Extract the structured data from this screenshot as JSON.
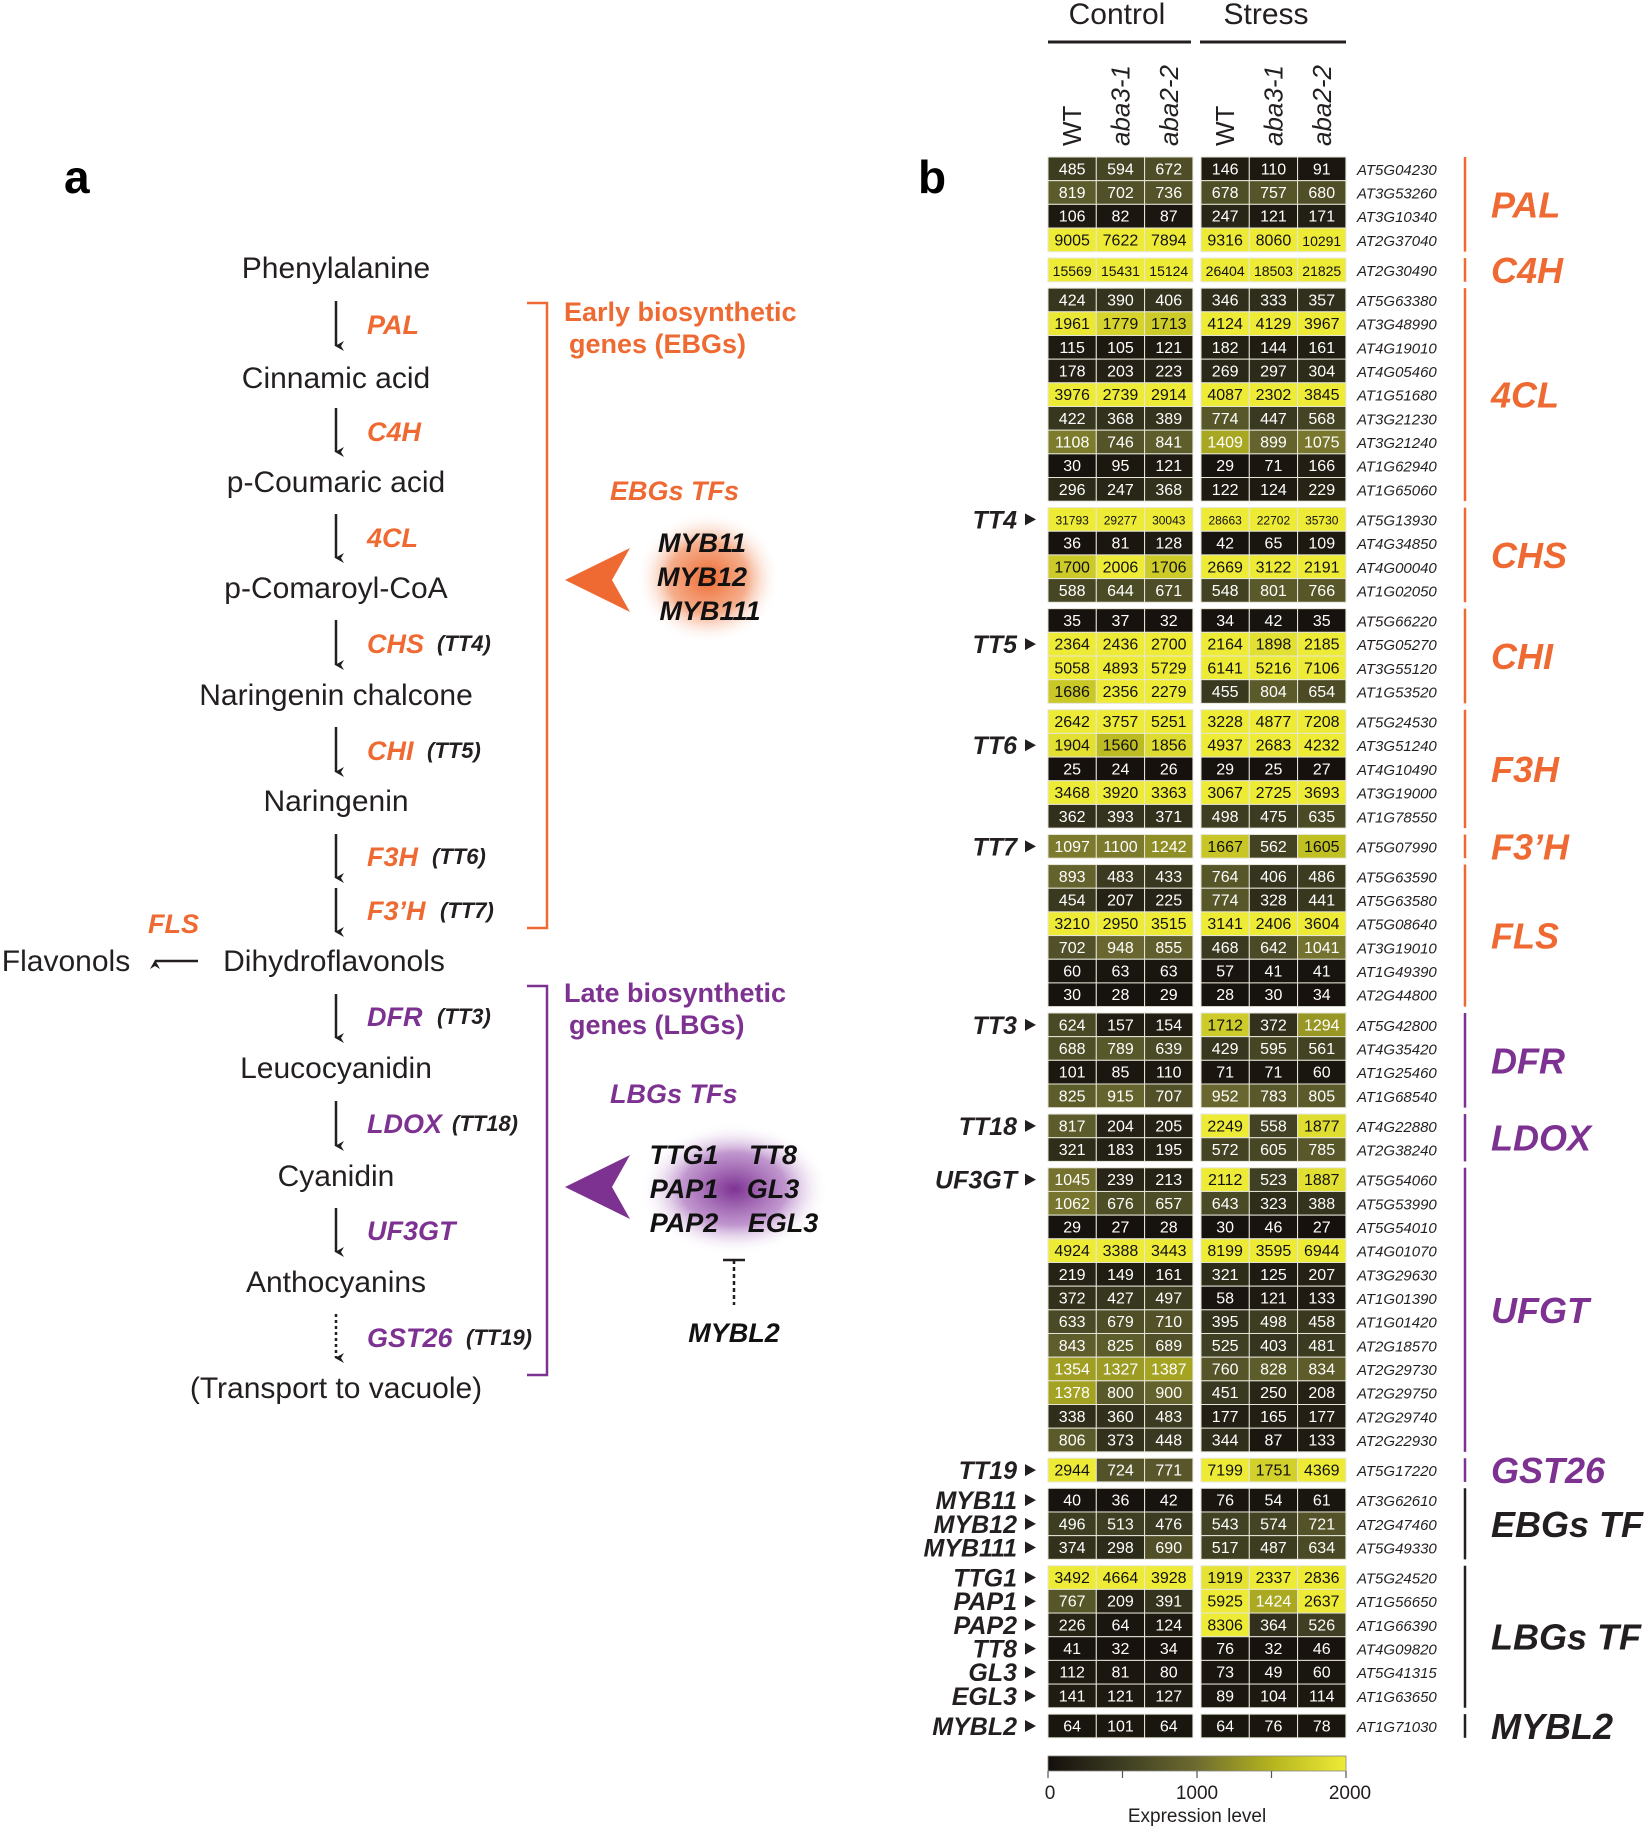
{
  "panel_a": {
    "label": "a",
    "compounds": [
      "Phenylalanine",
      "Cinnamic acid",
      "p-Coumaric acid",
      "p-Comaroyl-CoA",
      "Naringenin chalcone",
      "Naringenin",
      "Dihydroflavonols",
      "Leucocyanidin",
      "Cyanidin",
      "Anthocyanins",
      "(Transport to vacuole)"
    ],
    "side_product": "Flavonols",
    "side_enzyme": "FLS",
    "enzymes": [
      {
        "name": "PAL",
        "tt": ""
      },
      {
        "name": "C4H",
        "tt": ""
      },
      {
        "name": "4CL",
        "tt": ""
      },
      {
        "name": "CHS",
        "tt": "(TT4)"
      },
      {
        "name": "CHI",
        "tt": "(TT5)"
      },
      {
        "name": "F3H",
        "tt": "(TT6)"
      },
      {
        "name": "F3’H",
        "tt": "(TT7)"
      },
      {
        "name": "DFR",
        "tt": "(TT3)"
      },
      {
        "name": "LDOX",
        "tt": "(TT18)"
      },
      {
        "name": "UF3GT",
        "tt": ""
      },
      {
        "name": "GST26",
        "tt": "(TT19)"
      }
    ],
    "ebg_bracket": [
      "Early biosynthetic",
      "genes (EBGs)"
    ],
    "lbg_bracket": [
      "Late biosynthetic",
      "genes (LBGs)"
    ],
    "ebg_tfs_title": "EBGs TFs",
    "ebg_tfs": [
      "MYB11",
      "MYB12",
      "MYB111"
    ],
    "lbg_tfs_title": "LBGs TFs",
    "lbg_tfs": [
      "TTG1",
      "TT8",
      "PAP1",
      "GL3",
      "PAP2",
      "EGL3"
    ],
    "repressor": "MYBL2",
    "colors": {
      "early": "#ee6a32",
      "late": "#7d3292"
    }
  },
  "chart_data": {
    "type": "heatmap",
    "panel_label": "b",
    "conditions": [
      "Control",
      "Stress"
    ],
    "columns": [
      "WT",
      "aba3-1",
      "aba2-2",
      "WT",
      "aba3-1",
      "aba2-2"
    ],
    "colorbar": {
      "label": "Expression level",
      "range": [
        0,
        2000
      ],
      "ticks": [
        "0",
        "1000",
        "2000"
      ],
      "colors": [
        "#140f0c",
        "#3d3d22",
        "#6e6c30",
        "#b5b41e",
        "#eeeb37"
      ]
    },
    "groups": [
      {
        "name": "PAL",
        "color": "#ee6a32",
        "rows": [
          {
            "id": "AT5G04230",
            "v": [
              485,
              594,
              672,
              146,
              110,
              91
            ]
          },
          {
            "id": "AT3G53260",
            "v": [
              819,
              702,
              736,
              678,
              757,
              680
            ]
          },
          {
            "id": "AT3G10340",
            "v": [
              106,
              82,
              87,
              247,
              121,
              171
            ]
          },
          {
            "id": "AT2G37040",
            "v": [
              9005,
              7622,
              7894,
              9316,
              8060,
              10291
            ]
          }
        ]
      },
      {
        "name": "C4H",
        "color": "#ee6a32",
        "rows": [
          {
            "id": "AT2G30490",
            "v": [
              15569,
              15431,
              15124,
              26404,
              18503,
              21825
            ]
          }
        ]
      },
      {
        "name": "4CL",
        "color": "#ee6a32",
        "rows": [
          {
            "id": "AT5G63380",
            "v": [
              424,
              390,
              406,
              346,
              333,
              357
            ]
          },
          {
            "id": "AT3G48990",
            "v": [
              1961,
              1779,
              1713,
              4124,
              4129,
              3967
            ]
          },
          {
            "id": "AT4G19010",
            "v": [
              115,
              105,
              121,
              182,
              144,
              161
            ]
          },
          {
            "id": "AT4G05460",
            "v": [
              178,
              203,
              223,
              269,
              297,
              304
            ]
          },
          {
            "id": "AT1G51680",
            "v": [
              3976,
              2739,
              2914,
              4087,
              2302,
              3845
            ]
          },
          {
            "id": "AT3G21230",
            "v": [
              422,
              368,
              389,
              774,
              447,
              568
            ]
          },
          {
            "id": "AT3G21240",
            "v": [
              1108,
              746,
              841,
              1409,
              899,
              1075
            ]
          },
          {
            "id": "AT1G62940",
            "v": [
              30,
              95,
              121,
              29,
              71,
              166
            ]
          },
          {
            "id": "AT1G65060",
            "v": [
              296,
              247,
              368,
              122,
              124,
              229
            ]
          }
        ]
      },
      {
        "name": "CHS",
        "color": "#ee6a32",
        "rows": [
          {
            "id": "AT5G13930",
            "v": [
              31793,
              29277,
              30043,
              28663,
              22702,
              35730
            ],
            "tt": "TT4"
          },
          {
            "id": "AT4G34850",
            "v": [
              36,
              81,
              128,
              42,
              65,
              109
            ]
          },
          {
            "id": "AT4G00040",
            "v": [
              1700,
              2006,
              1706,
              2669,
              3122,
              2191
            ]
          },
          {
            "id": "AT1G02050",
            "v": [
              588,
              644,
              671,
              548,
              801,
              766
            ]
          }
        ]
      },
      {
        "name": "CHI",
        "color": "#ee6a32",
        "rows": [
          {
            "id": "AT5G66220",
            "v": [
              35,
              37,
              32,
              34,
              42,
              35
            ]
          },
          {
            "id": "AT5G05270",
            "v": [
              2364,
              2436,
              2700,
              2164,
              1898,
              2185
            ],
            "tt": "TT5"
          },
          {
            "id": "AT3G55120",
            "v": [
              5058,
              4893,
              5729,
              6141,
              5216,
              7106
            ]
          },
          {
            "id": "AT1G53520",
            "v": [
              1686,
              2356,
              2279,
              455,
              804,
              654
            ]
          }
        ]
      },
      {
        "name": "F3H",
        "color": "#ee6a32",
        "rows": [
          {
            "id": "AT5G24530",
            "v": [
              2642,
              3757,
              5251,
              3228,
              4877,
              7208
            ]
          },
          {
            "id": "AT3G51240",
            "v": [
              1904,
              1560,
              1856,
              4937,
              2683,
              4232
            ],
            "tt": "TT6"
          },
          {
            "id": "AT4G10490",
            "v": [
              25,
              24,
              26,
              29,
              25,
              27
            ]
          },
          {
            "id": "AT3G19000",
            "v": [
              3468,
              3920,
              3363,
              3067,
              2725,
              3693
            ]
          },
          {
            "id": "AT1G78550",
            "v": [
              362,
              393,
              371,
              498,
              475,
              635
            ]
          }
        ]
      },
      {
        "name": "F3’H",
        "color": "#ee6a32",
        "rows": [
          {
            "id": "AT5G07990",
            "v": [
              1097,
              1100,
              1242,
              1667,
              562,
              1605
            ],
            "tt": "TT7"
          }
        ]
      },
      {
        "name": "FLS",
        "color": "#ee6a32",
        "rows": [
          {
            "id": "AT5G63590",
            "v": [
              893,
              483,
              433,
              764,
              406,
              486
            ]
          },
          {
            "id": "AT5G63580",
            "v": [
              454,
              207,
              225,
              774,
              328,
              441
            ]
          },
          {
            "id": "AT5G08640",
            "v": [
              3210,
              2950,
              3515,
              3141,
              2406,
              3604
            ]
          },
          {
            "id": "AT3G19010",
            "v": [
              702,
              948,
              855,
              468,
              642,
              1041
            ]
          },
          {
            "id": "AT1G49390",
            "v": [
              60,
              63,
              63,
              57,
              41,
              41
            ]
          },
          {
            "id": "AT2G44800",
            "v": [
              30,
              28,
              29,
              28,
              30,
              34
            ]
          }
        ]
      },
      {
        "name": "DFR",
        "color": "#7d3292",
        "rows": [
          {
            "id": "AT5G42800",
            "v": [
              624,
              157,
              154,
              1712,
              372,
              1294
            ],
            "tt": "TT3"
          },
          {
            "id": "AT4G35420",
            "v": [
              688,
              789,
              639,
              429,
              595,
              561
            ]
          },
          {
            "id": "AT1G25460",
            "v": [
              101,
              85,
              110,
              71,
              71,
              60
            ]
          },
          {
            "id": "AT1G68540",
            "v": [
              825,
              915,
              707,
              952,
              783,
              805
            ]
          }
        ]
      },
      {
        "name": "LDOX",
        "color": "#7d3292",
        "rows": [
          {
            "id": "AT4G22880",
            "v": [
              817,
              204,
              205,
              2249,
              558,
              1877
            ],
            "tt": "TT18"
          },
          {
            "id": "AT2G38240",
            "v": [
              321,
              183,
              195,
              572,
              605,
              785
            ]
          }
        ]
      },
      {
        "name": "UFGT",
        "color": "#7d3292",
        "rows": [
          {
            "id": "AT5G54060",
            "v": [
              1045,
              239,
              213,
              2112,
              523,
              1887
            ],
            "tt": "UF3GT"
          },
          {
            "id": "AT5G53990",
            "v": [
              1062,
              676,
              657,
              643,
              323,
              388
            ]
          },
          {
            "id": "AT5G54010",
            "v": [
              29,
              27,
              28,
              30,
              46,
              27
            ]
          },
          {
            "id": "AT4G01070",
            "v": [
              4924,
              3388,
              3443,
              8199,
              3595,
              6944
            ]
          },
          {
            "id": "AT3G29630",
            "v": [
              219,
              149,
              161,
              321,
              125,
              207
            ]
          },
          {
            "id": "AT1G01390",
            "v": [
              372,
              427,
              497,
              58,
              121,
              133
            ]
          },
          {
            "id": "AT1G01420",
            "v": [
              633,
              679,
              710,
              395,
              498,
              458
            ]
          },
          {
            "id": "AT2G18570",
            "v": [
              843,
              825,
              689,
              525,
              403,
              481
            ]
          },
          {
            "id": "AT2G29730",
            "v": [
              1354,
              1327,
              1387,
              760,
              828,
              834
            ]
          },
          {
            "id": "AT2G29750",
            "v": [
              1378,
              800,
              900,
              451,
              250,
              208
            ]
          },
          {
            "id": "AT2G29740",
            "v": [
              338,
              360,
              483,
              177,
              165,
              177
            ]
          },
          {
            "id": "AT2G22930",
            "v": [
              806,
              373,
              448,
              344,
              87,
              133
            ]
          }
        ]
      },
      {
        "name": "GST26",
        "color": "#7d3292",
        "rows": [
          {
            "id": "AT5G17220",
            "v": [
              2944,
              724,
              771,
              7199,
              1751,
              4369
            ],
            "tt": "TT19"
          }
        ]
      },
      {
        "name": "EBGs TF",
        "color": "#231f20",
        "rows": [
          {
            "id": "AT3G62610",
            "v": [
              40,
              36,
              42,
              76,
              54,
              61
            ],
            "tt": "MYB11"
          },
          {
            "id": "AT2G47460",
            "v": [
              496,
              513,
              476,
              543,
              574,
              721
            ],
            "tt": "MYB12"
          },
          {
            "id": "AT5G49330",
            "v": [
              374,
              298,
              690,
              517,
              487,
              634
            ],
            "tt": "MYB111"
          }
        ]
      },
      {
        "name": "LBGs TF",
        "color": "#231f20",
        "rows": [
          {
            "id": "AT5G24520",
            "v": [
              3492,
              4664,
              3928,
              1919,
              2337,
              2836
            ],
            "tt": "TTG1"
          },
          {
            "id": "AT1G56650",
            "v": [
              767,
              209,
              391,
              5925,
              1424,
              2637
            ],
            "tt": "PAP1"
          },
          {
            "id": "AT1G66390",
            "v": [
              226,
              64,
              124,
              8306,
              364,
              526
            ],
            "tt": "PAP2"
          },
          {
            "id": "AT4G09820",
            "v": [
              41,
              32,
              34,
              76,
              32,
              46
            ],
            "tt": "TT8"
          },
          {
            "id": "AT5G41315",
            "v": [
              112,
              81,
              80,
              73,
              49,
              60
            ],
            "tt": "GL3"
          },
          {
            "id": "AT1G63650",
            "v": [
              141,
              121,
              127,
              89,
              104,
              114
            ],
            "tt": "EGL3"
          }
        ]
      },
      {
        "name": "MYBL2",
        "color": "#231f20",
        "rows": [
          {
            "id": "AT1G71030",
            "v": [
              64,
              101,
              64,
              64,
              76,
              78
            ],
            "tt": "MYBL2"
          }
        ]
      }
    ]
  }
}
